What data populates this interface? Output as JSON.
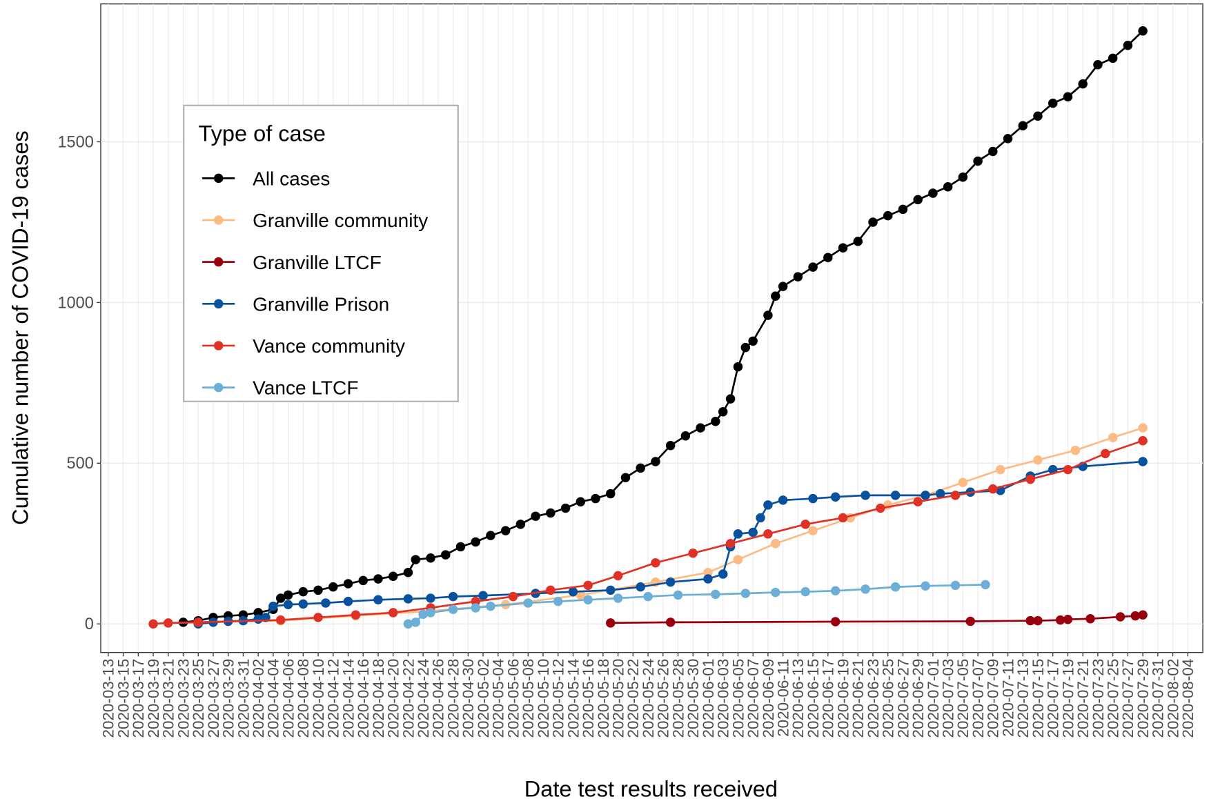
{
  "chart_data": {
    "type": "line",
    "x_label": "Date test results received",
    "y_label": "Cumulative number of COVID-19 cases",
    "legend_title": "Type of case",
    "legend_position": "top-left",
    "grid": true,
    "xlim": [
      "2020-03-12",
      "2020-08-06"
    ],
    "xticks": [
      "2020-03-13",
      "2020-03-15",
      "2020-03-17",
      "2020-03-19",
      "2020-03-21",
      "2020-03-23",
      "2020-03-25",
      "2020-03-27",
      "2020-03-29",
      "2020-03-31",
      "2020-04-02",
      "2020-04-04",
      "2020-04-06",
      "2020-04-08",
      "2020-04-10",
      "2020-04-12",
      "2020-04-14",
      "2020-04-16",
      "2020-04-18",
      "2020-04-20",
      "2020-04-22",
      "2020-04-24",
      "2020-04-26",
      "2020-04-28",
      "2020-04-30",
      "2020-05-02",
      "2020-05-04",
      "2020-05-06",
      "2020-05-08",
      "2020-05-10",
      "2020-05-12",
      "2020-05-14",
      "2020-05-16",
      "2020-05-18",
      "2020-05-20",
      "2020-05-22",
      "2020-05-24",
      "2020-05-26",
      "2020-05-28",
      "2020-05-30",
      "2020-06-01",
      "2020-06-03",
      "2020-06-05",
      "2020-06-07",
      "2020-06-09",
      "2020-06-11",
      "2020-06-13",
      "2020-06-15",
      "2020-06-17",
      "2020-06-19",
      "2020-06-21",
      "2020-06-23",
      "2020-06-25",
      "2020-06-27",
      "2020-06-29",
      "2020-07-01",
      "2020-07-03",
      "2020-07-05",
      "2020-07-07",
      "2020-07-09",
      "2020-07-11",
      "2020-07-13",
      "2020-07-15",
      "2020-07-17",
      "2020-07-19",
      "2020-07-21",
      "2020-07-23",
      "2020-07-25",
      "2020-07-27",
      "2020-07-29",
      "2020-07-31",
      "2020-08-02",
      "2020-08-04"
    ],
    "ylim": [
      -89,
      1929
    ],
    "yticks": [
      0,
      500,
      1000,
      1500
    ],
    "series": [
      {
        "name": "All cases",
        "color": "#000000",
        "x": [
          "2020-03-23",
          "2020-03-25",
          "2020-03-27",
          "2020-03-29",
          "2020-03-31",
          "2020-04-02",
          "2020-04-04",
          "2020-04-05",
          "2020-04-06",
          "2020-04-08",
          "2020-04-10",
          "2020-04-12",
          "2020-04-14",
          "2020-04-16",
          "2020-04-18",
          "2020-04-20",
          "2020-04-22",
          "2020-04-23",
          "2020-04-25",
          "2020-04-27",
          "2020-04-29",
          "2020-05-01",
          "2020-05-03",
          "2020-05-05",
          "2020-05-07",
          "2020-05-09",
          "2020-05-11",
          "2020-05-13",
          "2020-05-15",
          "2020-05-17",
          "2020-05-19",
          "2020-05-21",
          "2020-05-23",
          "2020-05-25",
          "2020-05-27",
          "2020-05-29",
          "2020-05-31",
          "2020-06-02",
          "2020-06-03",
          "2020-06-04",
          "2020-06-05",
          "2020-06-06",
          "2020-06-07",
          "2020-06-09",
          "2020-06-10",
          "2020-06-11",
          "2020-06-13",
          "2020-06-15",
          "2020-06-17",
          "2020-06-19",
          "2020-06-21",
          "2020-06-23",
          "2020-06-25",
          "2020-06-27",
          "2020-06-29",
          "2020-07-01",
          "2020-07-03",
          "2020-07-05",
          "2020-07-07",
          "2020-07-09",
          "2020-07-11",
          "2020-07-13",
          "2020-07-15",
          "2020-07-17",
          "2020-07-19",
          "2020-07-21",
          "2020-07-23",
          "2020-07-25",
          "2020-07-27",
          "2020-07-29"
        ],
        "values": [
          5,
          10,
          20,
          25,
          28,
          35,
          45,
          80,
          90,
          100,
          105,
          115,
          125,
          135,
          140,
          148,
          160,
          200,
          205,
          215,
          240,
          255,
          275,
          290,
          310,
          335,
          345,
          360,
          380,
          390,
          405,
          455,
          485,
          505,
          555,
          585,
          610,
          630,
          660,
          700,
          800,
          860,
          880,
          960,
          1020,
          1050,
          1080,
          1110,
          1140,
          1170,
          1190,
          1250,
          1270,
          1290,
          1320,
          1340,
          1360,
          1390,
          1440,
          1470,
          1510,
          1550,
          1580,
          1620,
          1640,
          1680,
          1740,
          1760,
          1800,
          1845
        ]
      },
      {
        "name": "Granville community",
        "color": "#fdbb84",
        "x": [
          "2020-03-21",
          "2020-03-25",
          "2020-04-05",
          "2020-04-15",
          "2020-04-25",
          "2020-05-05",
          "2020-05-15",
          "2020-05-25",
          "2020-06-01",
          "2020-06-05",
          "2020-06-10",
          "2020-06-15",
          "2020-06-20",
          "2020-06-25",
          "2020-06-30",
          "2020-07-05",
          "2020-07-10",
          "2020-07-15",
          "2020-07-20",
          "2020-07-25",
          "2020-07-29"
        ],
        "values": [
          3,
          5,
          10,
          25,
          40,
          60,
          90,
          130,
          160,
          200,
          250,
          290,
          330,
          370,
          400,
          440,
          480,
          510,
          540,
          580,
          610
        ]
      },
      {
        "name": "Granville LTCF",
        "color": "#99000d",
        "x": [
          "2020-05-19",
          "2020-05-27",
          "2020-06-18",
          "2020-07-06",
          "2020-07-14",
          "2020-07-15",
          "2020-07-18",
          "2020-07-19",
          "2020-07-22",
          "2020-07-26",
          "2020-07-28",
          "2020-07-29"
        ],
        "values": [
          3,
          5,
          7,
          8,
          10,
          10,
          12,
          14,
          16,
          22,
          25,
          28
        ]
      },
      {
        "name": "Granville Prison",
        "color": "#08519c",
        "x": [
          "2020-03-25",
          "2020-03-27",
          "2020-03-29",
          "2020-03-31",
          "2020-04-02",
          "2020-04-03",
          "2020-04-04",
          "2020-04-06",
          "2020-04-08",
          "2020-04-11",
          "2020-04-14",
          "2020-04-18",
          "2020-04-22",
          "2020-04-25",
          "2020-04-28",
          "2020-05-02",
          "2020-05-09",
          "2020-05-14",
          "2020-05-19",
          "2020-05-23",
          "2020-05-27",
          "2020-06-01",
          "2020-06-03",
          "2020-06-04",
          "2020-06-05",
          "2020-06-07",
          "2020-06-08",
          "2020-06-09",
          "2020-06-11",
          "2020-06-15",
          "2020-06-18",
          "2020-06-22",
          "2020-06-26",
          "2020-06-30",
          "2020-07-02",
          "2020-07-06",
          "2020-07-10",
          "2020-07-14",
          "2020-07-17",
          "2020-07-21",
          "2020-07-29"
        ],
        "values": [
          0,
          5,
          8,
          10,
          15,
          20,
          55,
          60,
          62,
          65,
          70,
          75,
          78,
          80,
          85,
          88,
          95,
          100,
          105,
          115,
          130,
          140,
          155,
          240,
          280,
          285,
          330,
          370,
          385,
          390,
          395,
          400,
          400,
          400,
          405,
          410,
          415,
          460,
          480,
          490,
          505
        ]
      },
      {
        "name": "Vance community",
        "color": "#e03127",
        "x": [
          "2020-03-19",
          "2020-03-21",
          "2020-03-25",
          "2020-04-05",
          "2020-04-10",
          "2020-04-15",
          "2020-04-20",
          "2020-04-25",
          "2020-05-01",
          "2020-05-06",
          "2020-05-11",
          "2020-05-16",
          "2020-05-20",
          "2020-05-25",
          "2020-05-30",
          "2020-06-04",
          "2020-06-09",
          "2020-06-14",
          "2020-06-19",
          "2020-06-24",
          "2020-06-29",
          "2020-07-04",
          "2020-07-09",
          "2020-07-14",
          "2020-07-19",
          "2020-07-24",
          "2020-07-29"
        ],
        "values": [
          0,
          3,
          5,
          12,
          20,
          28,
          35,
          50,
          70,
          85,
          105,
          120,
          150,
          190,
          220,
          250,
          280,
          310,
          330,
          360,
          380,
          400,
          420,
          450,
          480,
          530,
          570
        ]
      },
      {
        "name": "Vance LTCF",
        "color": "#6baed6",
        "x": [
          "2020-04-22",
          "2020-04-23",
          "2020-04-24",
          "2020-04-25",
          "2020-04-28",
          "2020-05-01",
          "2020-05-03",
          "2020-05-08",
          "2020-05-12",
          "2020-05-16",
          "2020-05-20",
          "2020-05-24",
          "2020-05-28",
          "2020-06-02",
          "2020-06-06",
          "2020-06-10",
          "2020-06-14",
          "2020-06-18",
          "2020-06-22",
          "2020-06-26",
          "2020-06-30",
          "2020-07-04",
          "2020-07-08"
        ],
        "values": [
          0,
          5,
          30,
          35,
          45,
          50,
          55,
          65,
          70,
          75,
          80,
          85,
          90,
          92,
          95,
          98,
          100,
          103,
          108,
          115,
          118,
          120,
          122
        ]
      }
    ]
  }
}
